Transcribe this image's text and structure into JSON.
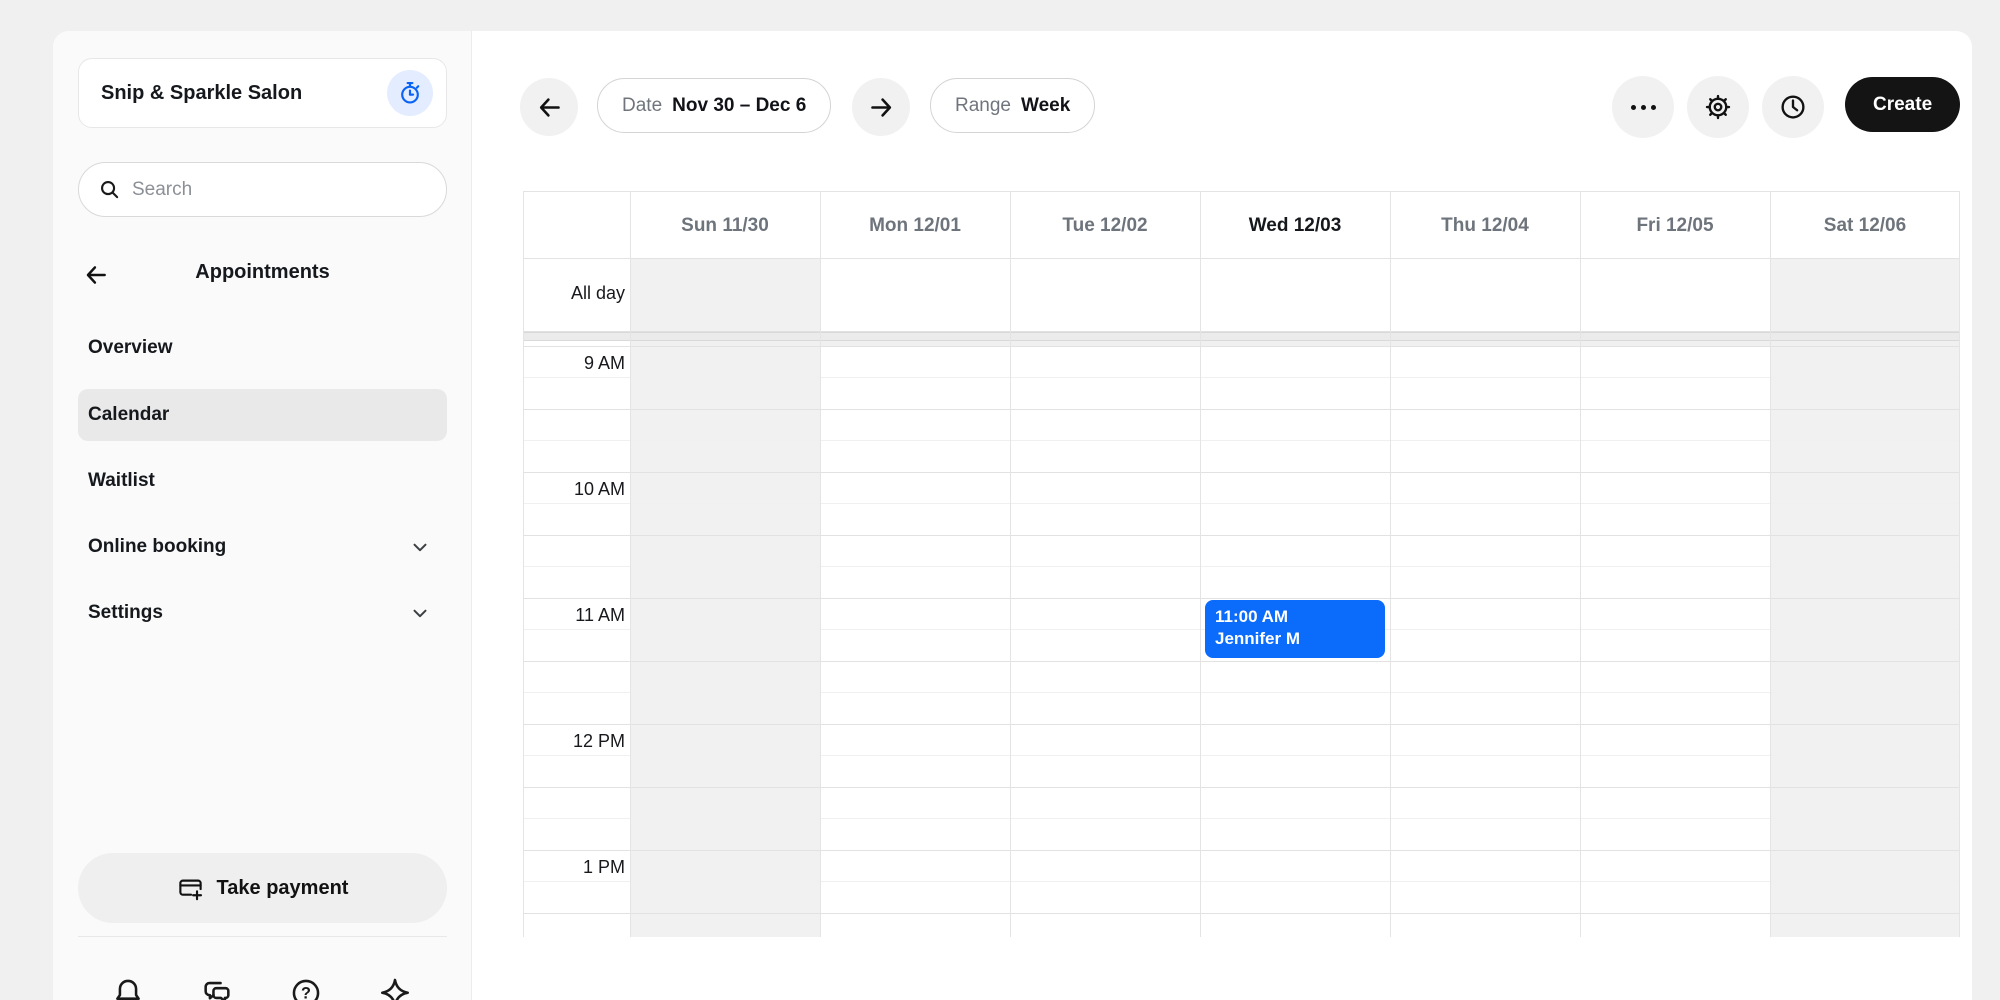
{
  "business": {
    "name": "Snip & Sparkle Salon"
  },
  "search": {
    "placeholder": "Search"
  },
  "sidebar": {
    "section_title": "Appointments",
    "items": [
      {
        "label": "Overview",
        "selected": false,
        "has_chevron": false
      },
      {
        "label": "Calendar",
        "selected": true,
        "has_chevron": false
      },
      {
        "label": "Waitlist",
        "selected": false,
        "has_chevron": false
      },
      {
        "label": "Online booking",
        "selected": false,
        "has_chevron": true
      },
      {
        "label": "Settings",
        "selected": false,
        "has_chevron": true
      }
    ],
    "take_payment_label": "Take payment",
    "help_glyph": "?",
    "footer_icons": [
      "bell-icon",
      "chat-icon",
      "help-icon",
      "sparkle-icon"
    ]
  },
  "topbar": {
    "date_label": "Date",
    "date_value": "Nov 30 – Dec 6",
    "range_label": "Range",
    "range_value": "Week",
    "create_label": "Create",
    "icons": [
      "more-ellipsis-icon",
      "gear-icon",
      "clock-icon"
    ]
  },
  "calendar": {
    "all_day_label": "All day",
    "days": [
      {
        "label": "Sun 11/30",
        "today": false,
        "weekend": true
      },
      {
        "label": "Mon 12/01",
        "today": false,
        "weekend": false
      },
      {
        "label": "Tue 12/02",
        "today": false,
        "weekend": false
      },
      {
        "label": "Wed 12/03",
        "today": true,
        "weekend": false
      },
      {
        "label": "Thu 12/04",
        "today": false,
        "weekend": false
      },
      {
        "label": "Fri 12/05",
        "today": false,
        "weekend": false
      },
      {
        "label": "Sat 12/06",
        "today": false,
        "weekend": true
      }
    ],
    "times": [
      "9 AM",
      "10 AM",
      "11 AM",
      "12 PM",
      "1 PM"
    ],
    "event": {
      "time": "11:00 AM",
      "client": "Jennifer M",
      "day": "Wed 12/03",
      "color": "#0b6bfb"
    }
  },
  "colors": {
    "accent_blue": "#0b6bfb",
    "event_bg": "#0b6bfb",
    "timer_badge_bg": "#e3edff",
    "weekend_bg": "#f1f1f1",
    "selected_nav_bg": "#e9e9e9",
    "create_btn_bg": "#141414",
    "backdrop": "#f0f0f1"
  }
}
